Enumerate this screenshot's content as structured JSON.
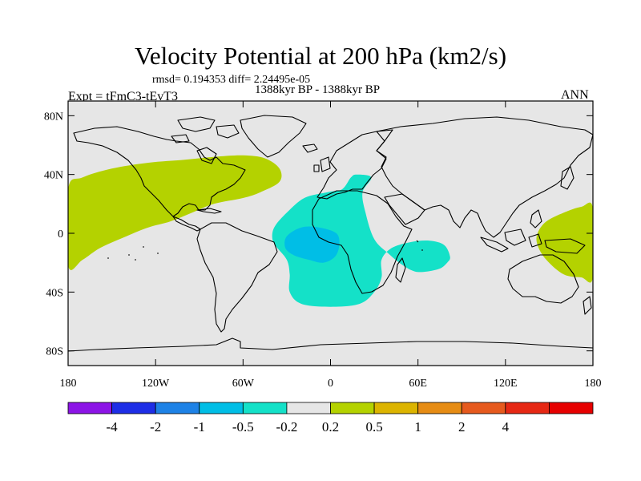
{
  "title": "Velocity Potential at 200 hPa (km2/s)",
  "stats": "rmsd= 0.194353 diff= 2.24495e-05",
  "period": "1388kyr BP - 1388kyr BP",
  "experiment": "Expt = tFmC3-tEvT3",
  "season": "ANN",
  "map": {
    "projection": "cylindrical-equidistant",
    "lon_range": [
      -180,
      180
    ],
    "lat_range": [
      -90,
      90
    ],
    "lat_ticks": [
      {
        "value": 80,
        "label": "80N"
      },
      {
        "value": 40,
        "label": "40N"
      },
      {
        "value": 0,
        "label": "0"
      },
      {
        "value": -40,
        "label": "40S"
      },
      {
        "value": -80,
        "label": "80S"
      }
    ],
    "lon_ticks": [
      {
        "value": -180,
        "label": "180"
      },
      {
        "value": -120,
        "label": "120W"
      },
      {
        "value": -60,
        "label": "60W"
      },
      {
        "value": 0,
        "label": "0"
      },
      {
        "value": 60,
        "label": "60E"
      },
      {
        "value": 120,
        "label": "120E"
      },
      {
        "value": 180,
        "label": "180"
      }
    ],
    "background_color": "#e6e6e6",
    "coastline_color": "#000000"
  },
  "regions": [
    {
      "name": "north-america-atlantic-positive",
      "category": "0.2 to 0.5",
      "color": "#b4d200",
      "outline": [
        [
          -180,
          -22
        ],
        [
          -180,
          30
        ],
        [
          -170,
          38
        ],
        [
          -150,
          44
        ],
        [
          -125,
          48
        ],
        [
          -100,
          50
        ],
        [
          -80,
          52
        ],
        [
          -60,
          53
        ],
        [
          -45,
          51
        ],
        [
          -35,
          44
        ],
        [
          -35,
          35
        ],
        [
          -48,
          28
        ],
        [
          -60,
          24
        ],
        [
          -80,
          20
        ],
        [
          -95,
          14
        ],
        [
          -110,
          8
        ],
        [
          -125,
          4
        ],
        [
          -140,
          -2
        ],
        [
          -158,
          -10
        ],
        [
          -170,
          -18
        ]
      ]
    },
    {
      "name": "western-pacific-positive",
      "category": "0.2 to 0.5",
      "color": "#b4d200",
      "outline": [
        [
          180,
          17
        ],
        [
          172,
          18
        ],
        [
          160,
          14
        ],
        [
          148,
          8
        ],
        [
          142,
          0
        ],
        [
          142,
          -8
        ],
        [
          148,
          -18
        ],
        [
          160,
          -28
        ],
        [
          172,
          -30
        ],
        [
          180,
          -30
        ]
      ]
    },
    {
      "name": "south-atlantic-africa-negative",
      "category": "-0.5 to -0.2",
      "color": "#14e1c8",
      "outline": [
        [
          -38,
          5
        ],
        [
          -30,
          14
        ],
        [
          -18,
          24
        ],
        [
          -2,
          28
        ],
        [
          8,
          30
        ],
        [
          14,
          38
        ],
        [
          18,
          40
        ],
        [
          28,
          38
        ],
        [
          22,
          28
        ],
        [
          24,
          14
        ],
        [
          30,
          -4
        ],
        [
          40,
          -14
        ],
        [
          50,
          -22
        ],
        [
          58,
          -26
        ],
        [
          66,
          -26
        ],
        [
          75,
          -24
        ],
        [
          80,
          -20
        ],
        [
          82,
          -16
        ],
        [
          78,
          -8
        ],
        [
          68,
          -5
        ],
        [
          55,
          -6
        ],
        [
          42,
          -10
        ],
        [
          35,
          -18
        ],
        [
          35,
          -30
        ],
        [
          30,
          -40
        ],
        [
          20,
          -48
        ],
        [
          0,
          -50
        ],
        [
          -20,
          -48
        ],
        [
          -28,
          -40
        ],
        [
          -28,
          -28
        ],
        [
          -30,
          -18
        ],
        [
          -38,
          -8
        ],
        [
          -40,
          -2
        ]
      ]
    },
    {
      "name": "south-atlantic-core-negative",
      "category": "-1 to -0.5",
      "color": "#00bee6",
      "outline": [
        [
          -30,
          -2
        ],
        [
          -20,
          4
        ],
        [
          -8,
          4
        ],
        [
          4,
          0
        ],
        [
          6,
          -8
        ],
        [
          3,
          -16
        ],
        [
          -5,
          -20
        ],
        [
          -15,
          -18
        ],
        [
          -25,
          -15
        ],
        [
          -31,
          -10
        ]
      ]
    }
  ],
  "colorbar": {
    "colors": [
      "#8c14e6",
      "#1e2ee6",
      "#1e82e6",
      "#00bee6",
      "#14e1c8",
      "#e6e6e6",
      "#b4d200",
      "#dcb400",
      "#e68c14",
      "#e65a1e",
      "#e62814",
      "#e60000"
    ],
    "labels": [
      "-4",
      "-2",
      "-1",
      "-0.5",
      "-0.2",
      "0.2",
      "0.5",
      "1",
      "2",
      "4"
    ]
  }
}
